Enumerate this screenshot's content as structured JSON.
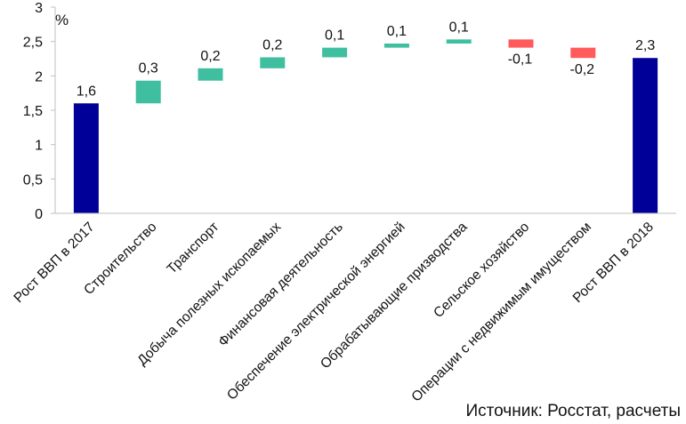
{
  "chart_data": {
    "type": "waterfall",
    "unit_label": "%",
    "ylim": [
      0,
      3
    ],
    "yticks": [
      {
        "value": 0,
        "label": "0"
      },
      {
        "value": 0.5,
        "label": "0,5"
      },
      {
        "value": 1,
        "label": "1"
      },
      {
        "value": 1.5,
        "label": "1,5"
      },
      {
        "value": 2,
        "label": "2"
      },
      {
        "value": 2.5,
        "label": "2,5"
      },
      {
        "value": 3,
        "label": "3"
      }
    ],
    "grid": false,
    "colors": {
      "total": "#000099",
      "increase": "#3fbfa0",
      "decrease": "#ff5b5b",
      "axis": "#bfbfbf",
      "text": "#111111"
    },
    "bars": [
      {
        "category": "Рост ВВП в 2017",
        "kind": "total",
        "start": 0,
        "end": 1.6,
        "label": "1,6"
      },
      {
        "category": "Строительство",
        "kind": "increase",
        "start": 1.6,
        "end": 1.93,
        "label": "0,3"
      },
      {
        "category": "Транспорт",
        "kind": "increase",
        "start": 1.93,
        "end": 2.11,
        "label": "0,2"
      },
      {
        "category": "Добыча полезных ископаемых",
        "kind": "increase",
        "start": 2.11,
        "end": 2.27,
        "label": "0,2"
      },
      {
        "category": "Финансовая  деятельность",
        "kind": "increase",
        "start": 2.27,
        "end": 2.41,
        "label": "0,1"
      },
      {
        "category": "Обеспечение электрической  энергией",
        "kind": "increase",
        "start": 2.41,
        "end": 2.47,
        "label": "0,1"
      },
      {
        "category": "Обрабатывающие  призводства",
        "kind": "increase",
        "start": 2.47,
        "end": 2.53,
        "label": "0,1"
      },
      {
        "category": "Сельское хозяйство",
        "kind": "decrease",
        "start": 2.53,
        "end": 2.41,
        "label": "-0,1"
      },
      {
        "category": "Операции с недвижимым имуществом",
        "kind": "decrease",
        "start": 2.41,
        "end": 2.26,
        "label": "-0,2"
      },
      {
        "category": "Рост ВВП в 2018",
        "kind": "total",
        "start": 0,
        "end": 2.26,
        "label": "2,3"
      }
    ]
  },
  "source_text": "Источник:  Росстат, расчеты"
}
